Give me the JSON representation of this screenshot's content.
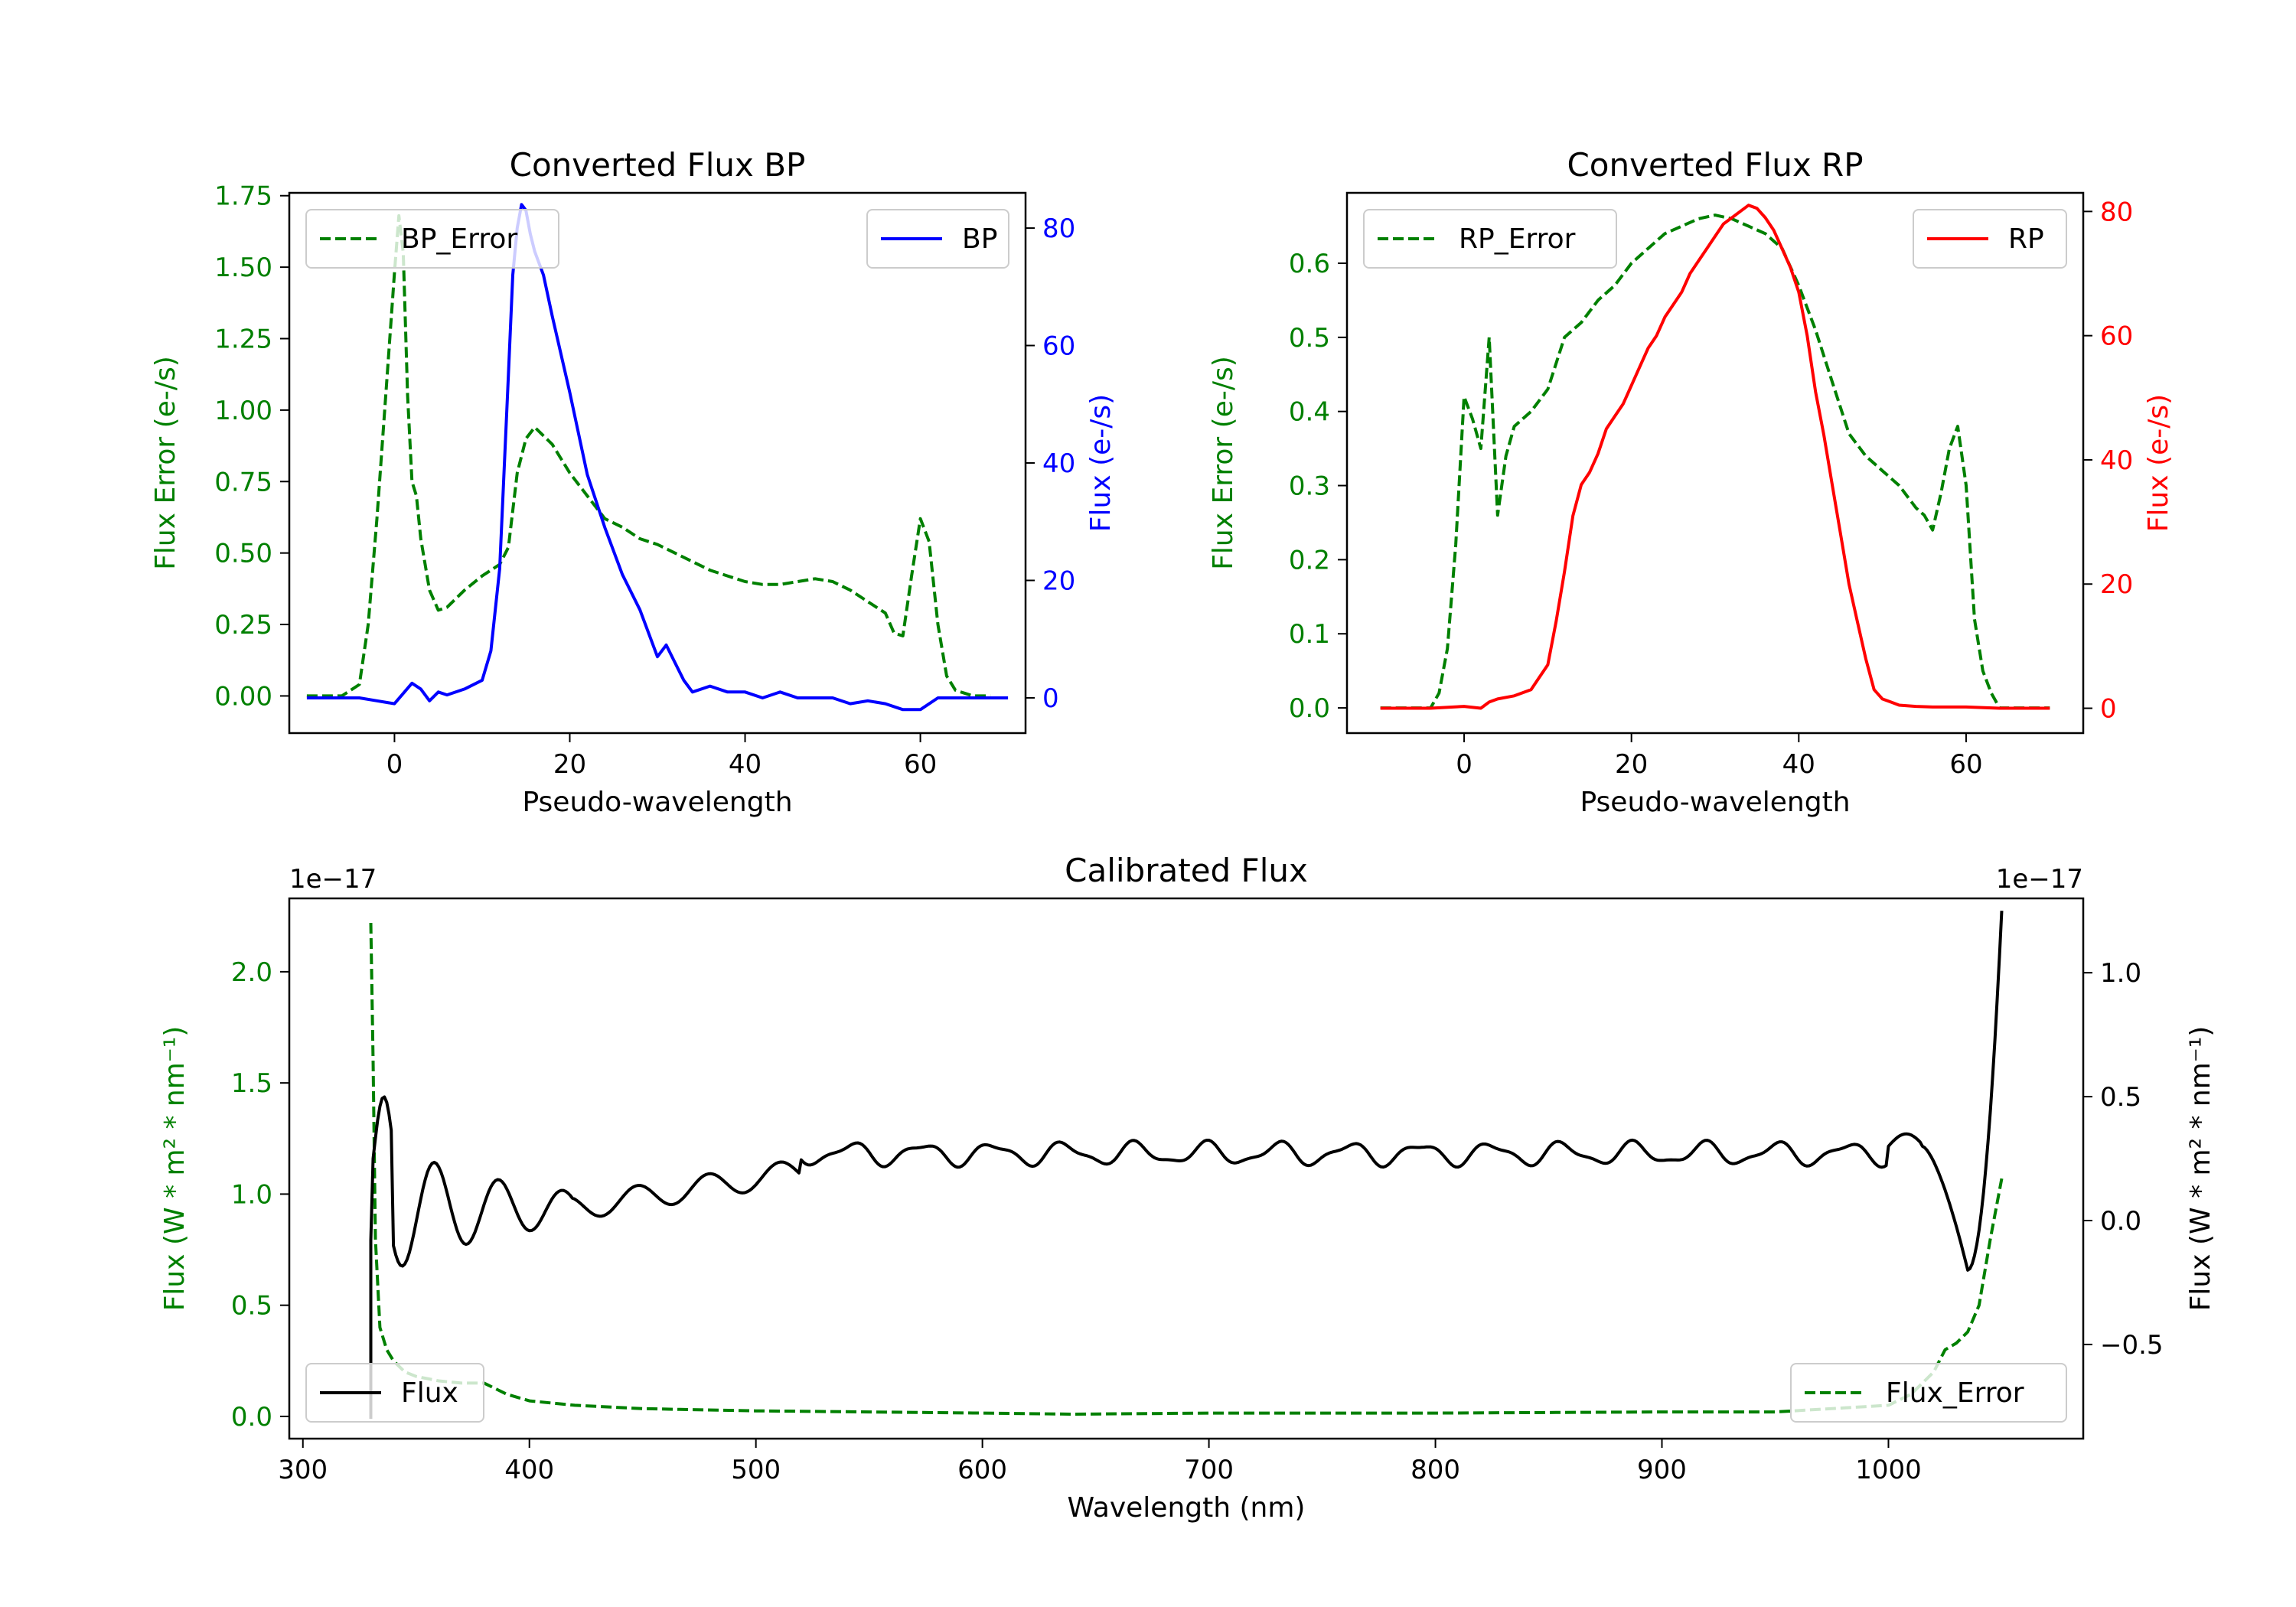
{
  "colors": {
    "error": "#008000",
    "bp": "#0000ff",
    "rp": "#ff0000",
    "flux": "#000000",
    "axis": "#000000",
    "frame_bg": "#ffffff"
  },
  "chart_data": [
    {
      "id": "bp",
      "type": "line",
      "title": "Converted Flux BP",
      "xlabel": "Pseudo-wavelength",
      "ylabel_left": "Flux Error (e-/s)",
      "ylabel_right": "Flux (e-/s)",
      "xlim": [
        -12,
        72
      ],
      "ylim_left": [
        -0.13,
        1.76
      ],
      "ylim_right": [
        -6,
        86
      ],
      "xticks": [
        0,
        20,
        40,
        60
      ],
      "yticks_left": [
        0.0,
        0.25,
        0.5,
        0.75,
        1.0,
        1.25,
        1.5,
        1.75
      ],
      "yticks_left_labels": [
        "0.00",
        "0.25",
        "0.50",
        "0.75",
        "1.00",
        "1.25",
        "1.50",
        "1.75"
      ],
      "yticks_right": [
        0,
        20,
        40,
        60,
        80
      ],
      "yticks_right_labels": [
        "0",
        "20",
        "40",
        "60",
        "80"
      ],
      "legend_left": "BP_Error",
      "legend_right": "BP",
      "series": [
        {
          "name": "BP_Error",
          "axis": "left",
          "style": "dashed",
          "color_key": "error",
          "x": [
            -10,
            -6,
            -4,
            -3,
            -2,
            -1,
            0,
            0.5,
            1,
            1.5,
            2,
            2.5,
            3,
            4,
            5,
            6,
            8,
            10,
            12,
            13,
            14,
            15,
            16,
            18,
            20,
            22,
            24,
            26,
            28,
            30,
            32,
            34,
            36,
            38,
            40,
            42,
            44,
            46,
            48,
            50,
            52,
            54,
            56,
            57,
            58,
            59,
            60,
            61,
            62,
            63,
            64,
            65,
            66,
            68
          ],
          "y": [
            0.0,
            0.0,
            0.04,
            0.25,
            0.62,
            1.05,
            1.48,
            1.68,
            1.55,
            1.05,
            0.75,
            0.7,
            0.55,
            0.37,
            0.3,
            0.31,
            0.37,
            0.42,
            0.46,
            0.52,
            0.78,
            0.9,
            0.94,
            0.88,
            0.78,
            0.7,
            0.62,
            0.59,
            0.55,
            0.53,
            0.5,
            0.47,
            0.44,
            0.42,
            0.4,
            0.39,
            0.39,
            0.4,
            0.41,
            0.4,
            0.37,
            0.33,
            0.29,
            0.22,
            0.21,
            0.42,
            0.62,
            0.54,
            0.25,
            0.07,
            0.02,
            0.01,
            0.0,
            0.0
          ]
        },
        {
          "name": "BP",
          "axis": "right",
          "style": "solid",
          "color_key": "bp",
          "x": [
            -10,
            -4,
            -2,
            0,
            2,
            3,
            4,
            5,
            6,
            8,
            10,
            11,
            12,
            13,
            13.5,
            14,
            14.5,
            15,
            15.5,
            16,
            17,
            18,
            20,
            22,
            24,
            26,
            28,
            30,
            31,
            32,
            33,
            34,
            36,
            38,
            40,
            42,
            44,
            46,
            48,
            50,
            52,
            54,
            56,
            58,
            60,
            62,
            64,
            66,
            70
          ],
          "y": [
            0,
            0,
            -0.5,
            -1,
            2.5,
            1.5,
            -0.5,
            1,
            0.5,
            1.5,
            3,
            8,
            22,
            55,
            72,
            80,
            84,
            83,
            79,
            76,
            72,
            65,
            52,
            38,
            29,
            21,
            15,
            7,
            9,
            6,
            3,
            1,
            2,
            1,
            1,
            0,
            1,
            0,
            0,
            0,
            -1,
            -0.5,
            -1,
            -2,
            -2,
            0,
            0,
            0,
            0
          ]
        }
      ]
    },
    {
      "id": "rp",
      "type": "line",
      "title": "Converted Flux RP",
      "xlabel": "Pseudo-wavelength",
      "ylabel_left": "Flux Error (e-/s)",
      "ylabel_right": "Flux (e-/s)",
      "xlim": [
        -14,
        74
      ],
      "ylim_left": [
        -0.034,
        0.695
      ],
      "ylim_right": [
        -4,
        83
      ],
      "xticks": [
        0,
        20,
        40,
        60
      ],
      "yticks_left": [
        0.0,
        0.1,
        0.2,
        0.3,
        0.4,
        0.5,
        0.6
      ],
      "yticks_left_labels": [
        "0.0",
        "0.1",
        "0.2",
        "0.3",
        "0.4",
        "0.5",
        "0.6"
      ],
      "yticks_right": [
        0,
        20,
        40,
        60,
        80
      ],
      "yticks_right_labels": [
        "0",
        "20",
        "40",
        "60",
        "80"
      ],
      "legend_left": "RP_Error",
      "legend_right": "RP",
      "series": [
        {
          "name": "RP_Error",
          "axis": "left",
          "style": "dashed",
          "color_key": "error",
          "x": [
            -10,
            -4,
            -3,
            -2,
            -1,
            0,
            1,
            2,
            3,
            4,
            5,
            6,
            8,
            10,
            12,
            14,
            16,
            18,
            20,
            22,
            24,
            26,
            28,
            30,
            32,
            34,
            36,
            38,
            40,
            42,
            44,
            46,
            48,
            50,
            52,
            54,
            55,
            56,
            57,
            58,
            59,
            60,
            61,
            62,
            63,
            64,
            66,
            70
          ],
          "y": [
            0.0,
            0.0,
            0.02,
            0.08,
            0.22,
            0.42,
            0.39,
            0.35,
            0.5,
            0.26,
            0.34,
            0.38,
            0.4,
            0.43,
            0.5,
            0.52,
            0.55,
            0.57,
            0.6,
            0.62,
            0.64,
            0.65,
            0.66,
            0.665,
            0.66,
            0.65,
            0.64,
            0.62,
            0.57,
            0.51,
            0.44,
            0.37,
            0.34,
            0.32,
            0.3,
            0.27,
            0.26,
            0.24,
            0.29,
            0.35,
            0.38,
            0.3,
            0.12,
            0.05,
            0.02,
            0.0,
            0.0,
            0.0
          ]
        },
        {
          "name": "RP",
          "axis": "right",
          "style": "solid",
          "color_key": "rp",
          "x": [
            -10,
            -4,
            0,
            2,
            3,
            4,
            6,
            8,
            10,
            11,
            12,
            13,
            14,
            15,
            16,
            17,
            18,
            19,
            20,
            21,
            22,
            23,
            24,
            25,
            26,
            27,
            28,
            29,
            30,
            31,
            32,
            33,
            34,
            35,
            36,
            37,
            38,
            39,
            40,
            41,
            42,
            43,
            44,
            45,
            46,
            47,
            48,
            49,
            50,
            51,
            52,
            54,
            56,
            60,
            64,
            70
          ],
          "y": [
            0,
            0,
            0.3,
            0,
            1,
            1.5,
            2,
            3,
            7,
            14,
            22,
            31,
            36,
            38,
            41,
            45,
            47,
            49,
            52,
            55,
            58,
            60,
            63,
            65,
            67,
            70,
            72,
            74,
            76,
            78,
            79,
            80,
            81,
            80.5,
            79,
            77,
            74,
            71,
            67,
            60,
            51,
            44,
            36,
            28,
            20,
            14,
            8,
            3,
            1.5,
            1,
            0.5,
            0.3,
            0.2,
            0.2,
            0,
            0
          ]
        }
      ]
    },
    {
      "id": "calibrated",
      "type": "line",
      "title": "Calibrated Flux",
      "xlabel": "Wavelength (nm)",
      "ylabel_left": "Flux (W * m² * nm⁻¹)",
      "ylabel_right": "Flux (W * m² * nm⁻¹)",
      "offset_left": "1e−17",
      "offset_right": "1e−17",
      "xlim": [
        294,
        1086
      ],
      "ylim_left": [
        -0.1,
        2.33
      ],
      "ylim_right": [
        -0.88,
        1.3
      ],
      "xticks": [
        300,
        400,
        500,
        600,
        700,
        800,
        900,
        1000
      ],
      "yticks_left": [
        0.0,
        0.5,
        1.0,
        1.5,
        2.0
      ],
      "yticks_left_labels": [
        "0.0",
        "0.5",
        "1.0",
        "1.5",
        "2.0"
      ],
      "yticks_right": [
        -0.5,
        0.0,
        0.5,
        1.0
      ],
      "yticks_right_labels": [
        "−0.5",
        "0.0",
        "0.5",
        "1.0"
      ],
      "legend_left": "Flux",
      "legend_right": "Flux_Error",
      "series": [
        {
          "name": "Flux_Error",
          "axis": "left",
          "style": "dashed",
          "color_key": "error",
          "x": [
            330,
            331,
            332,
            334,
            337,
            340,
            345,
            350,
            360,
            370,
            380,
            390,
            400,
            420,
            450,
            500,
            550,
            600,
            640,
            700,
            800,
            900,
            950,
            1000,
            1010,
            1020,
            1025,
            1030,
            1035,
            1040,
            1045,
            1050
          ],
          "y": [
            2.22,
            1.6,
            0.8,
            0.4,
            0.3,
            0.25,
            0.2,
            0.18,
            0.16,
            0.15,
            0.15,
            0.1,
            0.07,
            0.05,
            0.035,
            0.025,
            0.02,
            0.015,
            0.01,
            0.015,
            0.015,
            0.02,
            0.02,
            0.05,
            0.1,
            0.2,
            0.3,
            0.33,
            0.38,
            0.5,
            0.8,
            1.07
          ]
        }
      ]
    }
  ]
}
